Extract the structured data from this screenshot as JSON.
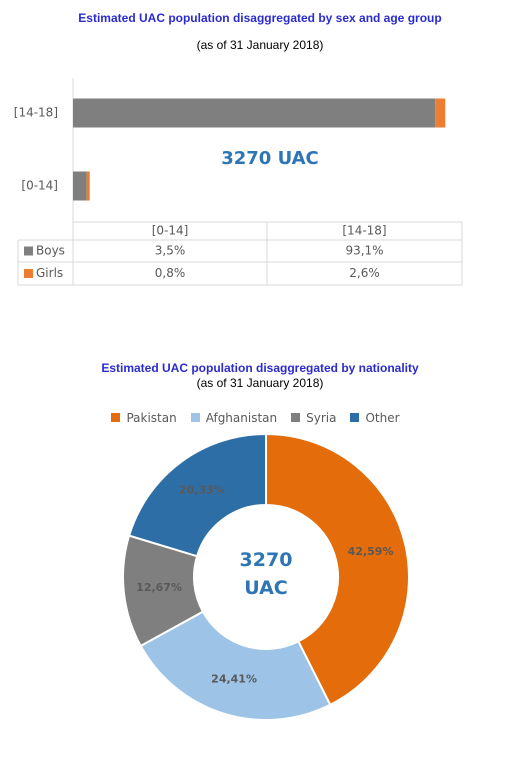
{
  "chart_data": [
    {
      "type": "bar",
      "stacked": true,
      "orientation": "horizontal",
      "title": "Estimated UAC population disaggregated by sex and age group",
      "subtitle": "(as of 31 January 2018)",
      "annotation": "3270 UAC",
      "categories": [
        "[0-14]",
        "[14-18]"
      ],
      "series": [
        {
          "name": "Boys",
          "color": "#7f7f7f",
          "values": [
            3.5,
            93.1
          ],
          "value_labels": [
            "3,5%",
            "93,1%"
          ]
        },
        {
          "name": "Girls",
          "color": "#ed7d31",
          "values": [
            0.8,
            2.6
          ],
          "value_labels": [
            "0,8%",
            "2,6%"
          ]
        }
      ],
      "xlim": [
        0,
        100
      ],
      "data_table": true
    },
    {
      "type": "donut",
      "title": "Estimated UAC population disaggregated by nationality",
      "subtitle": "(as of 31 January 2018)",
      "annotation": "3270 UAC",
      "categories": [
        "Pakistan",
        "Afghanistan",
        "Syria",
        "Other"
      ],
      "values": [
        42.59,
        24.41,
        12.67,
        20.33
      ],
      "value_labels": [
        "42,59%",
        "24,41%",
        "12,67%",
        "20,33%"
      ],
      "colors": [
        "#e46c0a",
        "#9dc3e6",
        "#7f7f7f",
        "#2e6ea6"
      ],
      "legend": "top"
    }
  ]
}
